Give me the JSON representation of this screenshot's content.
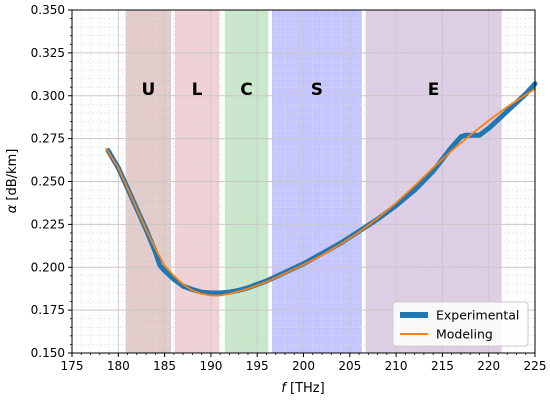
{
  "chart_data": {
    "type": "line",
    "xlabel_symbol": "f",
    "xlabel_unit": " [THz]",
    "ylabel_symbol": "α",
    "ylabel_unit": " [dB/km]",
    "xlim": [
      175,
      225
    ],
    "ylim": [
      0.15,
      0.35
    ],
    "x_ticks": [
      175,
      180,
      185,
      190,
      195,
      200,
      205,
      210,
      215,
      220,
      225
    ],
    "x_tick_labels": [
      "175",
      "180",
      "185",
      "190",
      "195",
      "200",
      "205",
      "210",
      "215",
      "220",
      "225"
    ],
    "y_ticks": [
      0.15,
      0.175,
      0.2,
      0.225,
      0.25,
      0.275,
      0.3,
      0.325,
      0.35
    ],
    "y_tick_labels": [
      "0.150",
      "0.175",
      "0.200",
      "0.225",
      "0.250",
      "0.275",
      "0.300",
      "0.325",
      "0.350"
    ],
    "grid": true,
    "minor_grid": true,
    "legend_position": "bottom-right",
    "bands": [
      {
        "label": "U",
        "x_start": 180.8,
        "x_end": 185.7,
        "color": "#a0524d"
      },
      {
        "label": "L",
        "x_start": 186.1,
        "x_end": 190.9,
        "color": "#cc6677"
      },
      {
        "label": "C",
        "x_start": 191.5,
        "x_end": 196.2,
        "color": "#4caf50"
      },
      {
        "label": "S",
        "x_start": 196.6,
        "x_end": 206.3,
        "color": "#3f3fff"
      },
      {
        "label": "E",
        "x_start": 206.7,
        "x_end": 221.4,
        "color": "#8e5ba8"
      }
    ],
    "series": [
      {
        "name": "Experimental",
        "color": "#1f77b4",
        "style": "thick",
        "x": [
          178.9,
          180,
          181,
          182,
          183,
          184,
          184.5,
          185,
          186,
          187,
          188,
          189,
          190,
          191,
          192,
          193,
          194,
          195,
          196,
          198,
          200,
          202,
          204,
          206,
          208,
          210,
          212,
          214,
          215,
          216,
          217,
          217.5,
          218,
          218.5,
          219,
          220,
          221,
          222,
          223,
          224,
          225
        ],
        "y": [
          0.268,
          0.258,
          0.246,
          0.234,
          0.222,
          0.209,
          0.201,
          0.198,
          0.193,
          0.189,
          0.187,
          0.1855,
          0.185,
          0.185,
          0.1855,
          0.1865,
          0.188,
          0.19,
          0.192,
          0.197,
          0.202,
          0.208,
          0.214,
          0.221,
          0.228,
          0.236,
          0.245,
          0.256,
          0.263,
          0.27,
          0.276,
          0.277,
          0.277,
          0.277,
          0.277,
          0.281,
          0.286,
          0.291,
          0.296,
          0.301,
          0.307
        ]
      },
      {
        "name": "Modeling",
        "color": "#ff7f0e",
        "style": "thin",
        "x": [
          178.7,
          180,
          181,
          182,
          183,
          184,
          185,
          186,
          187,
          188,
          189,
          190,
          191,
          192,
          193,
          194,
          195,
          196,
          198,
          200,
          202,
          204,
          206,
          208,
          210,
          212,
          214,
          216,
          218,
          220,
          222,
          224,
          225
        ],
        "y": [
          0.269,
          0.258,
          0.246,
          0.234,
          0.222,
          0.211,
          0.201,
          0.195,
          0.19,
          0.1865,
          0.1845,
          0.1835,
          0.1835,
          0.1845,
          0.186,
          0.1875,
          0.1895,
          0.1915,
          0.1965,
          0.2015,
          0.207,
          0.2135,
          0.2205,
          0.2285,
          0.2375,
          0.2475,
          0.258,
          0.268,
          0.277,
          0.2855,
          0.2935,
          0.3005,
          0.304
        ]
      }
    ]
  }
}
